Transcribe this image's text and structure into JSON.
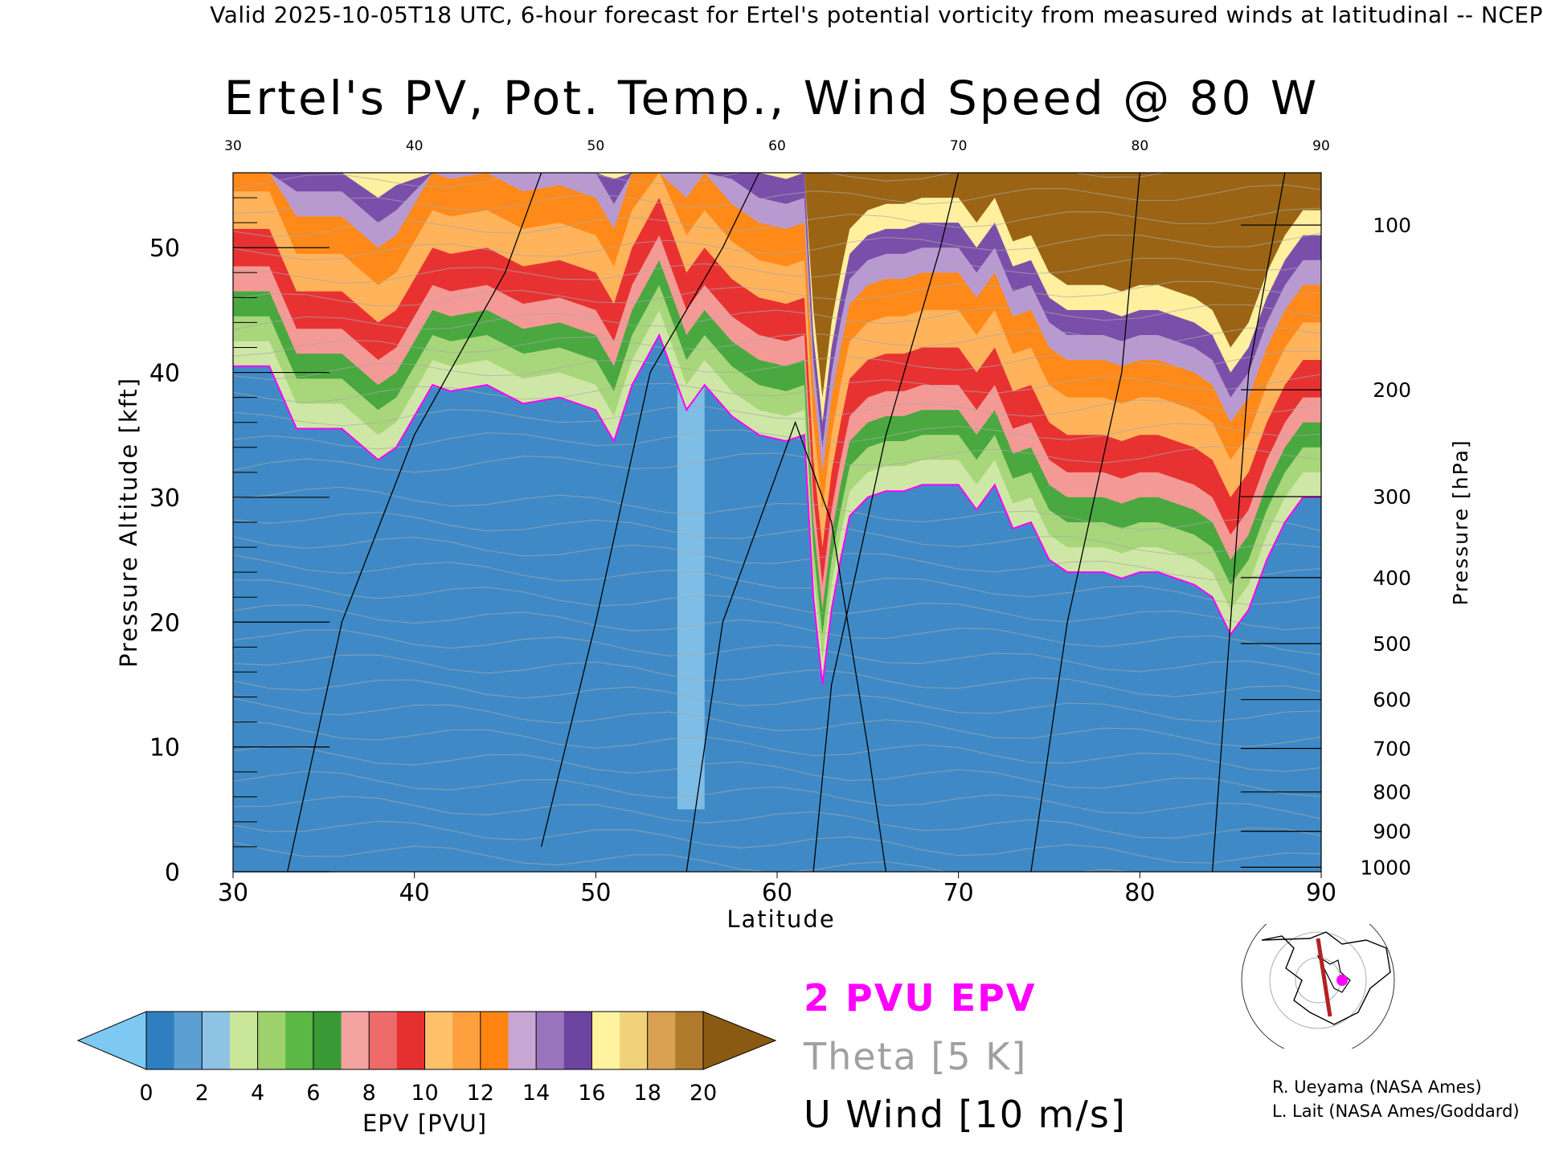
{
  "caption": "Valid 2025-10-05T18 UTC, 6-hour forecast for Ertel's potential vorticity from measured winds at latitudinal -- NCEP",
  "chart_data": {
    "type": "heatmap",
    "title": "Ertel's PV, Pot. Temp., Wind Speed @ 80 W",
    "xlabel": "Latitude",
    "ylabel": "Pressure Altitude [kft]",
    "ylabel_right": "Pressure [hPa]",
    "xlim": [
      30,
      90
    ],
    "ylim": [
      0,
      56
    ],
    "x_ticks": [
      "30",
      "40",
      "50",
      "60",
      "70",
      "80",
      "90"
    ],
    "y_ticks": [
      "0",
      "10",
      "20",
      "30",
      "40",
      "50"
    ],
    "pressure_ticks": [
      "100",
      "200",
      "300",
      "400",
      "500",
      "600",
      "700",
      "800",
      "900",
      "1000"
    ],
    "pressure_levels": [
      100,
      200,
      300,
      400,
      "500",
      600,
      700,
      800,
      900,
      1000
    ],
    "colorbar": {
      "label": "EPV [PVU]",
      "ticks": [
        "0",
        "2",
        "4",
        "6",
        "8",
        "10",
        "12",
        "14",
        "16",
        "18",
        "20"
      ],
      "colors": [
        "#2f7fc0",
        "#5b9fd3",
        "#8ec3e4",
        "#c9e597",
        "#9ed16c",
        "#5cb845",
        "#3a9a36",
        "#f4a3a0",
        "#ef6b6b",
        "#e62f2f",
        "#ffc06a",
        "#ffa03e",
        "#ff8412",
        "#c8a6d4",
        "#9a74bd",
        "#6c44a0",
        "#fff3a0",
        "#f0d27a",
        "#d8a050",
        "#b07a2c"
      ],
      "under_color": "#7ec8f4",
      "over_color": "#8b5a12"
    },
    "tropopause_latitudes": [
      30,
      32,
      33.5,
      36,
      38,
      39,
      41,
      42,
      44,
      46,
      48,
      50,
      51,
      52,
      53.5,
      55,
      56,
      57.5,
      59,
      60.5,
      61.5,
      62,
      62.5,
      63,
      63.5,
      64,
      65,
      66,
      67,
      68,
      69,
      70,
      71,
      72,
      73,
      74,
      75,
      76,
      77,
      78,
      79,
      80,
      81,
      82,
      83,
      84,
      85,
      86,
      87,
      88,
      89,
      90
    ],
    "tropopause_kft": [
      40.5,
      40.5,
      35.5,
      35.5,
      33,
      34,
      39,
      38.5,
      39,
      37.5,
      38,
      37,
      34.5,
      39,
      43,
      37,
      39,
      36.5,
      35,
      34.5,
      35,
      22,
      15,
      21,
      25,
      28.5,
      30,
      30.5,
      30.5,
      31,
      31,
      31,
      29,
      31,
      27.5,
      28,
      25,
      24,
      24,
      24,
      23.5,
      24,
      24,
      23.5,
      23,
      22,
      19,
      21,
      25,
      28,
      30,
      30
    ]
  },
  "legend": {
    "epv": "2 PVU EPV",
    "theta": "Theta [5 K]",
    "wind": "U Wind [10 m/s]",
    "epv_color": "#ff00ff",
    "theta_color": "#a0a0a0"
  },
  "credits": [
    "R. Ueyama (NASA Ames)",
    "L. Lait (NASA Ames/Goddard)"
  ]
}
